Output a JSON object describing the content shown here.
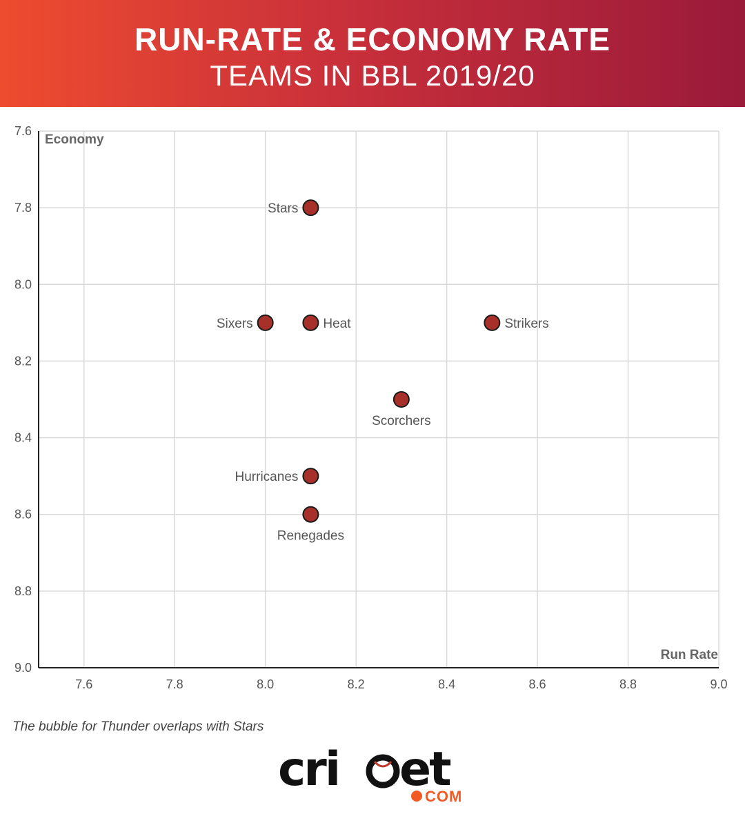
{
  "header": {
    "title": "RUN-RATE & ECONOMY RATE",
    "subtitle": "TEAMS IN BBL 2019/20"
  },
  "chart_data": {
    "type": "scatter",
    "xlabel": "Run Rate",
    "ylabel": "Economy",
    "xlim": [
      7.5,
      9.0
    ],
    "ylim": [
      7.6,
      9.0
    ],
    "y_inverted": true,
    "grid": true,
    "x_ticks": [
      "7.6",
      "7.8",
      "8.0",
      "8.2",
      "8.4",
      "8.6",
      "8.8",
      "9.0"
    ],
    "y_ticks": [
      "7.6",
      "7.8",
      "8.0",
      "8.2",
      "8.4",
      "8.6",
      "8.8",
      "9.0"
    ],
    "points": [
      {
        "label": "Stars",
        "x": 8.1,
        "y": 7.8,
        "label_pos": "left"
      },
      {
        "label": "Sixers",
        "x": 8.0,
        "y": 8.1,
        "label_pos": "left"
      },
      {
        "label": "Heat",
        "x": 8.1,
        "y": 8.1,
        "label_pos": "right"
      },
      {
        "label": "Strikers",
        "x": 8.5,
        "y": 8.1,
        "label_pos": "right"
      },
      {
        "label": "Scorchers",
        "x": 8.3,
        "y": 8.3,
        "label_pos": "below"
      },
      {
        "label": "Hurricanes",
        "x": 8.1,
        "y": 8.5,
        "label_pos": "left"
      },
      {
        "label": "Renegades",
        "x": 8.1,
        "y": 8.6,
        "label_pos": "below"
      }
    ],
    "point_color": "#a8302a"
  },
  "note": "The bubble for Thunder overlaps with Stars",
  "logo": {
    "word": "cricket",
    "suffix": "COM",
    "accent": "#f15a24"
  }
}
